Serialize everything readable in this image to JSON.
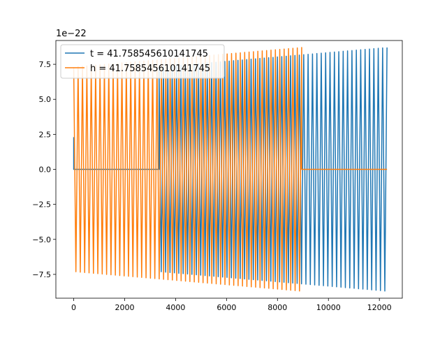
{
  "chart_data": {
    "type": "line",
    "title": "",
    "xlabel": "",
    "ylabel": "",
    "y_offset_label": "1e−22",
    "xlim": [
      -700,
      12900
    ],
    "ylim": [
      -9.2,
      9.2
    ],
    "x_ticks": [
      0,
      2000,
      4000,
      6000,
      8000,
      10000,
      12000
    ],
    "x_tick_labels": [
      "0",
      "2000",
      "4000",
      "6000",
      "8000",
      "10000",
      "12000"
    ],
    "y_ticks": [
      -7.5,
      -5.0,
      -2.5,
      0.0,
      2.5,
      5.0,
      7.5
    ],
    "y_tick_labels": [
      "−7.5",
      "−5.0",
      "−2.5",
      "0.0",
      "2.5",
      "5.0",
      "7.5"
    ],
    "grid": false,
    "legend_position": "upper-left",
    "series": [
      {
        "name": "t = 41.758545610141745",
        "color": "#1f77b4",
        "zero_start": 0,
        "zero_end": 3350,
        "osc_start": 3350,
        "osc_end": 12300,
        "amp_start": 7.3,
        "amp_end": 8.7,
        "cycles": 52
      },
      {
        "name": "h = 41.758545610141745",
        "color": "#ff7f0e",
        "osc_start": 0,
        "osc_end": 8950,
        "amp_start": 7.3,
        "amp_end": 8.7,
        "cycles": 52,
        "zero_start": 8950,
        "zero_end": 12300
      }
    ]
  }
}
